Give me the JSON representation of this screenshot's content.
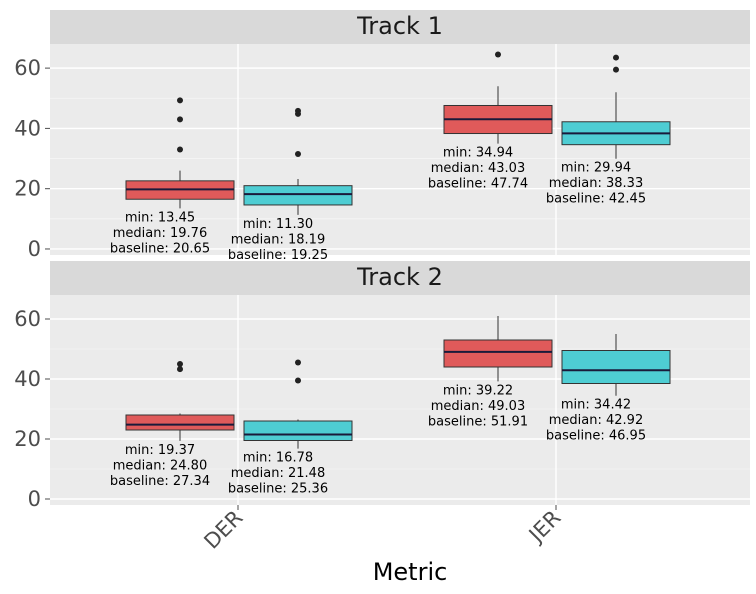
{
  "chart_data": {
    "type": "boxplot",
    "xlabel": "Metric",
    "ylabel": "",
    "ylim": [
      -2,
      68
    ],
    "yticks": [
      0,
      20,
      40,
      60
    ],
    "categories": [
      "DER",
      "JER"
    ],
    "series_colors": [
      "#E05A5A",
      "#4ECDD3"
    ],
    "panels": [
      {
        "title": "Track 1",
        "boxes": [
          {
            "category": "DER",
            "series": 0,
            "whisker_low": 13.45,
            "q1": 16.5,
            "median": 19.76,
            "q3": 22.6,
            "whisker_high": 26.0,
            "outliers": [
              33.0,
              43.0,
              49.3
            ],
            "annotation": [
              "min: 13.45",
              "median: 19.76",
              "baseline: 20.65"
            ]
          },
          {
            "category": "DER",
            "series": 1,
            "whisker_low": 11.3,
            "q1": 14.6,
            "median": 18.19,
            "q3": 21.0,
            "whisker_high": 23.2,
            "outliers": [
              31.5,
              44.8,
              45.8
            ],
            "annotation": [
              "min: 11.30",
              "median: 18.19",
              "baseline: 19.25"
            ]
          },
          {
            "category": "JER",
            "series": 0,
            "whisker_low": 34.94,
            "q1": 38.3,
            "median": 43.03,
            "q3": 47.6,
            "whisker_high": 54.0,
            "outliers": [
              64.5
            ],
            "annotation": [
              "min: 34.94",
              "median: 43.03",
              "baseline: 47.74"
            ]
          },
          {
            "category": "JER",
            "series": 1,
            "whisker_low": 29.94,
            "q1": 34.6,
            "median": 38.33,
            "q3": 42.2,
            "whisker_high": 52.0,
            "outliers": [
              59.5,
              63.5
            ],
            "annotation": [
              "min: 29.94",
              "median: 38.33",
              "baseline: 42.45"
            ]
          }
        ]
      },
      {
        "title": "Track 2",
        "boxes": [
          {
            "category": "DER",
            "series": 0,
            "whisker_low": 19.37,
            "q1": 23.0,
            "median": 24.8,
            "q3": 28.0,
            "whisker_high": 28.5,
            "outliers": [
              43.3,
              45.0
            ],
            "annotation": [
              "min: 19.37",
              "median: 24.80",
              "baseline: 27.34"
            ]
          },
          {
            "category": "DER",
            "series": 1,
            "whisker_low": 16.78,
            "q1": 19.5,
            "median": 21.48,
            "q3": 26.0,
            "whisker_high": 26.5,
            "outliers": [
              39.5,
              45.5
            ],
            "annotation": [
              "min: 16.78",
              "median: 21.48",
              "baseline: 25.36"
            ]
          },
          {
            "category": "JER",
            "series": 0,
            "whisker_low": 39.22,
            "q1": 44.0,
            "median": 49.03,
            "q3": 53.0,
            "whisker_high": 61.0,
            "outliers": [],
            "annotation": [
              "min: 39.22",
              "median: 49.03",
              "baseline: 51.91"
            ]
          },
          {
            "category": "JER",
            "series": 1,
            "whisker_low": 34.42,
            "q1": 38.5,
            "median": 42.92,
            "q3": 49.5,
            "whisker_high": 55.0,
            "outliers": [],
            "annotation": [
              "min: 34.42",
              "median: 42.92",
              "baseline: 46.95"
            ]
          }
        ]
      }
    ]
  }
}
